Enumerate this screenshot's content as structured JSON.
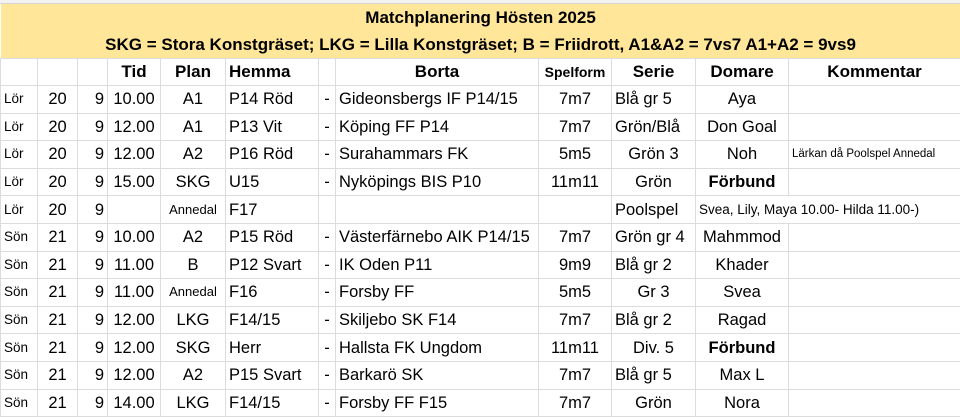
{
  "title": "Matchplanering Hösten 2025",
  "subtitle": "SKG = Stora Konstgräset; LKG = Lilla Konstgräset; B = Friidrott, A1&A2 = 7vs7 A1+A2 = 9vs9",
  "headers": {
    "tid": "Tid",
    "plan": "Plan",
    "hemma": "Hemma",
    "borta": "Borta",
    "spelform": "Spelform",
    "serie": "Serie",
    "domare": "Domare",
    "kommentar": "Kommentar"
  },
  "rows": [
    {
      "day": "Lör",
      "date": "20",
      "month": "9",
      "tid": "10.00",
      "plan": "A1",
      "hemma": "P14 Röd",
      "sep": "-",
      "borta": "Gideonsbergs IF P14/15",
      "spelform": "7m7",
      "serie": "Blå gr 5",
      "domare": "Aya",
      "kommentar": ""
    },
    {
      "day": "Lör",
      "date": "20",
      "month": "9",
      "tid": "12.00",
      "plan": "A1",
      "hemma": "P13 Vit",
      "sep": "-",
      "borta": "Köping FF P14",
      "spelform": "7m7",
      "serie": "Grön/Blå",
      "domare": "Don Goal",
      "kommentar": ""
    },
    {
      "day": "Lör",
      "date": "20",
      "month": "9",
      "tid": "12.00",
      "plan": "A2",
      "hemma": "P16 Röd",
      "sep": "-",
      "borta": "Surahammars FK",
      "spelform": "5m5",
      "serie": "Grön 3",
      "domare": "Noh",
      "kommentar": "Lärkan då Poolspel Annedal"
    },
    {
      "day": "Lör",
      "date": "20",
      "month": "9",
      "tid": "15.00",
      "plan": "SKG",
      "hemma": "U15",
      "sep": "-",
      "borta": "Nyköpings BIS P10",
      "spelform": "11m11",
      "serie": "Grön",
      "domare": "Förbund",
      "kommentar": ""
    },
    {
      "day": "Lör",
      "date": "20",
      "month": "9",
      "tid": "",
      "plan": "Annedal",
      "hemma": "F17",
      "sep": "",
      "borta": "",
      "spelform": "",
      "serie": "Poolspel",
      "domare": "Svea, Lily, Maya 10.00- Hilda 11.00-)",
      "kommentar": ""
    },
    {
      "day": "Sön",
      "date": "21",
      "month": "9",
      "tid": "10.00",
      "plan": "A2",
      "hemma": "P15 Röd",
      "sep": "-",
      "borta": "Västerfärnebo AIK P14/15",
      "spelform": "7m7",
      "serie": "Grön gr 4",
      "domare": "Mahmmod",
      "kommentar": ""
    },
    {
      "day": "Sön",
      "date": "21",
      "month": "9",
      "tid": "11.00",
      "plan": "B",
      "hemma": "P12 Svart",
      "sep": "-",
      "borta": "IK Oden P11",
      "spelform": "9m9",
      "serie": "Blå gr 2",
      "domare": "Khader",
      "kommentar": ""
    },
    {
      "day": "Sön",
      "date": "21",
      "month": "9",
      "tid": "11.00",
      "plan": "Annedal",
      "hemma": "F16",
      "sep": "-",
      "borta": "Forsby FF",
      "spelform": "5m5",
      "serie": "Gr 3",
      "domare": "Svea",
      "kommentar": ""
    },
    {
      "day": "Sön",
      "date": "21",
      "month": "9",
      "tid": "12.00",
      "plan": "LKG",
      "hemma": "F14/15",
      "sep": "-",
      "borta": "Skiljebo SK F14",
      "spelform": "7m7",
      "serie": "Blå gr 2",
      "domare": "Ragad",
      "kommentar": ""
    },
    {
      "day": "Sön",
      "date": "21",
      "month": "9",
      "tid": "12.00",
      "plan": "SKG",
      "hemma": "Herr",
      "sep": "-",
      "borta": "Hallsta FK Ungdom",
      "spelform": "11m11",
      "serie": "Div. 5",
      "domare": "Förbund",
      "kommentar": ""
    },
    {
      "day": "Sön",
      "date": "21",
      "month": "9",
      "tid": "12.00",
      "plan": "A2",
      "hemma": "P15 Svart",
      "sep": "-",
      "borta": "Barkarö SK",
      "spelform": "7m7",
      "serie": "Blå gr 5",
      "domare": "Max L",
      "kommentar": ""
    },
    {
      "day": "Sön",
      "date": "21",
      "month": "9",
      "tid": "14.00",
      "plan": "LKG",
      "hemma": "F14/15",
      "sep": "-",
      "borta": "Forsby FF F15",
      "spelform": "7m7",
      "serie": "Grön",
      "domare": "Nora",
      "kommentar": ""
    }
  ]
}
